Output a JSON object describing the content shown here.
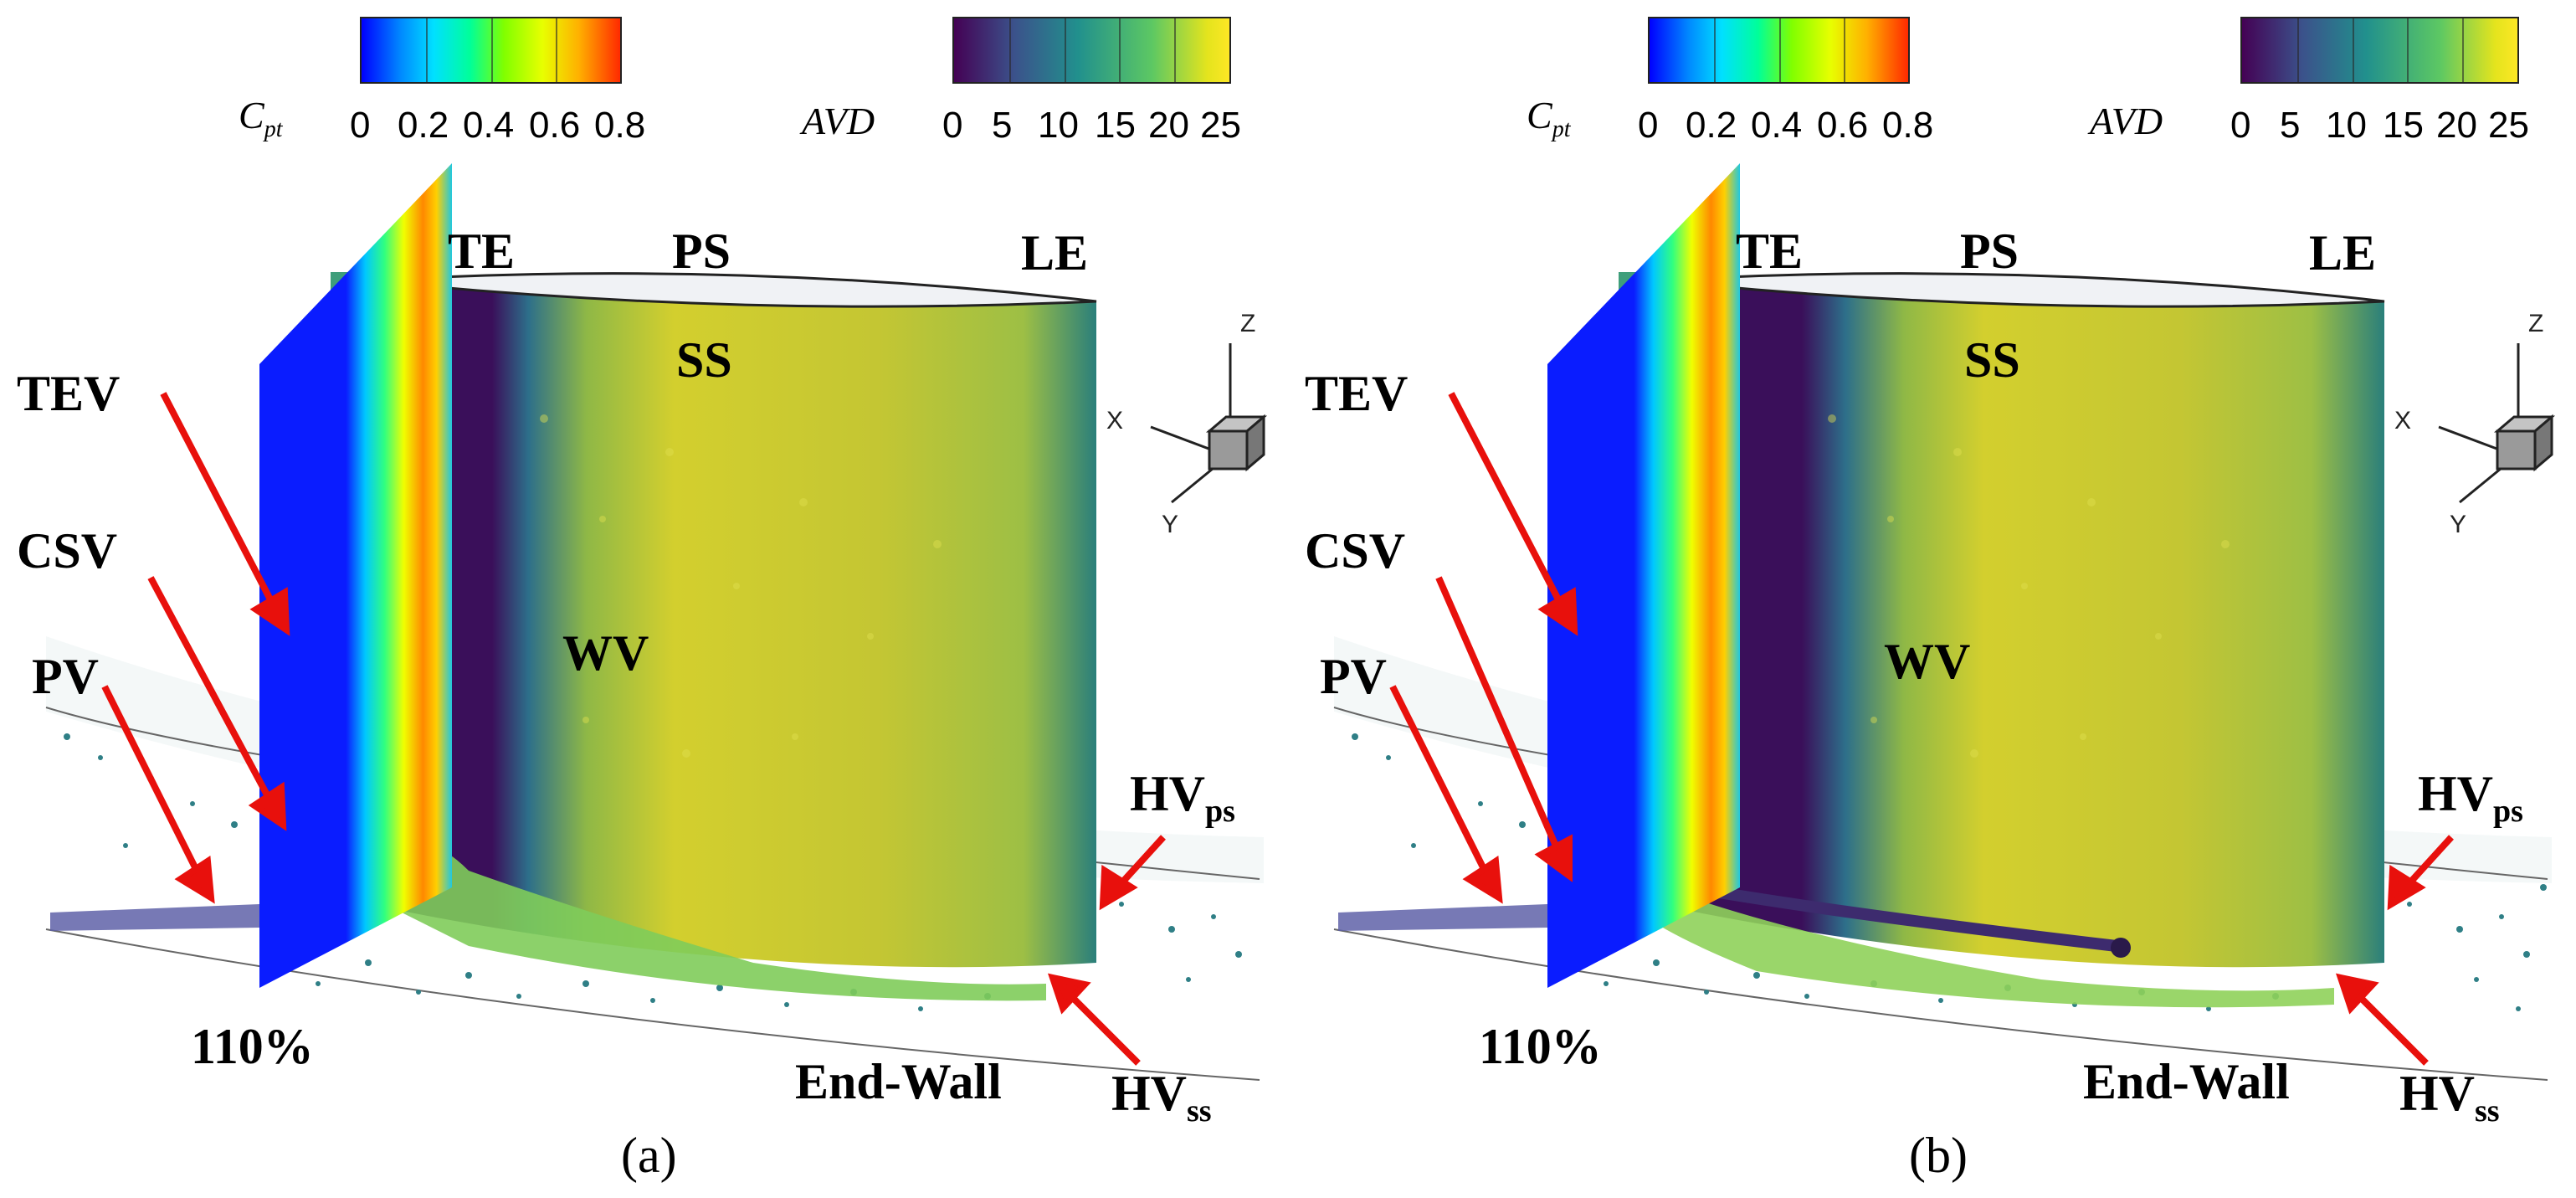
{
  "colorbars": {
    "cpt": {
      "label_main": "C",
      "label_sub": "pt",
      "ticks": [
        "0",
        "0.2",
        "0.4",
        "0.6",
        "0.8"
      ],
      "colormap": "rainbow"
    },
    "avd": {
      "label": "AVD",
      "ticks": [
        "0",
        "5",
        "10",
        "15",
        "20",
        "25"
      ],
      "colormap": "viridis"
    }
  },
  "axes_triad": {
    "x": "X",
    "y": "Y",
    "z": "Z"
  },
  "panel_a": {
    "labels": {
      "te": "TE",
      "ps": "PS",
      "le": "LE",
      "ss": "SS",
      "wv": "WV",
      "tev": "TEV",
      "csv": "CSV",
      "pv": "PV",
      "hv_ps_main": "HV",
      "hv_ps_sub": "ps",
      "hv_ss_main": "HV",
      "hv_ss_sub": "ss",
      "plane_pct": "110%",
      "end_wall": "End-Wall"
    },
    "caption": "(a)"
  },
  "panel_b": {
    "labels": {
      "te": "TE",
      "ps": "PS",
      "le": "LE",
      "ss": "SS",
      "wv": "WV",
      "tev": "TEV",
      "csv": "CSV",
      "pv": "PV",
      "hv_ps_main": "HV",
      "hv_ps_sub": "ps",
      "hv_ss_main": "HV",
      "hv_ss_sub": "ss",
      "plane_pct": "110%",
      "end_wall": "End-Wall"
    },
    "caption": "(b)"
  },
  "colors": {
    "arrow": "#e8100c",
    "plane_blue": "#0a1cff",
    "blade_surface": "#c3c630",
    "blade_dark": "#3a0f5a"
  }
}
